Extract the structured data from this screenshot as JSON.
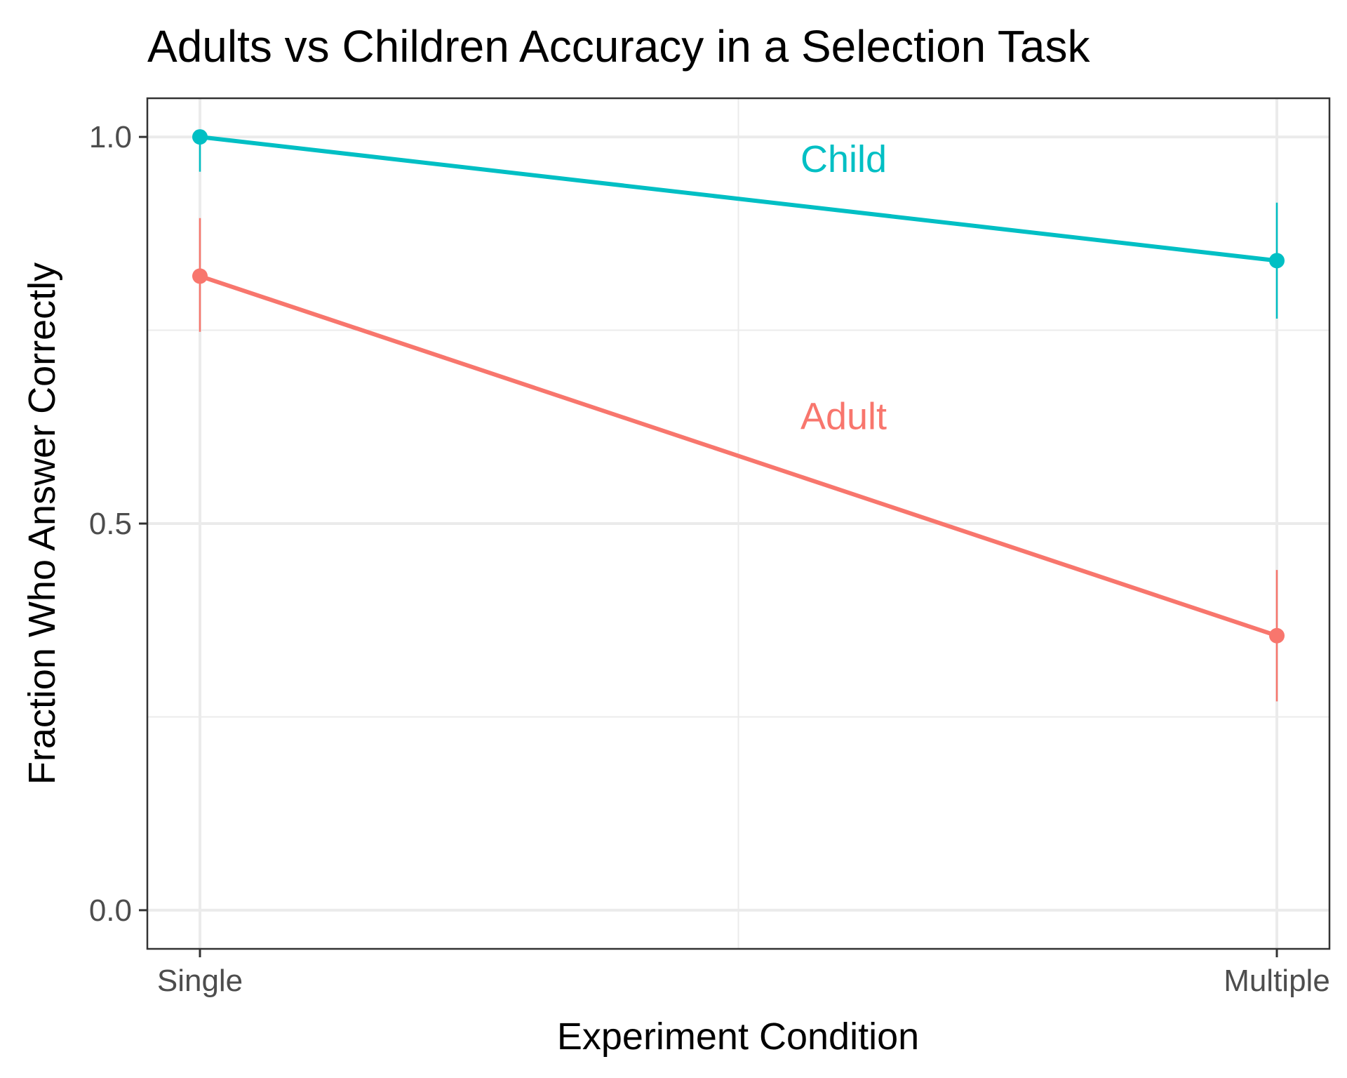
{
  "chart_data": {
    "type": "line",
    "title": "Adults vs Children Accuracy in a Selection Task",
    "xlabel": "Experiment Condition",
    "ylabel": "Fraction Who Answer Correctly",
    "categories": [
      "Single",
      "Multiple"
    ],
    "ylim": [
      -0.05,
      1.05
    ],
    "yticks": [
      0.0,
      0.5,
      1.0
    ],
    "ytick_labels": [
      "0.0",
      "0.5",
      "1.0"
    ],
    "grid": true,
    "legend": "none (direct labels on lines)",
    "series": [
      {
        "name": "Child",
        "color": "#00BFC4",
        "values": [
          1.0,
          0.84
        ],
        "error_low": [
          0.955,
          0.765
        ],
        "error_high": [
          1.0,
          0.915
        ]
      },
      {
        "name": "Adult",
        "color": "#F8766D",
        "values": [
          0.82,
          0.355
        ],
        "error_low": [
          0.748,
          0.27
        ],
        "error_high": [
          0.895,
          0.44
        ]
      }
    ]
  }
}
